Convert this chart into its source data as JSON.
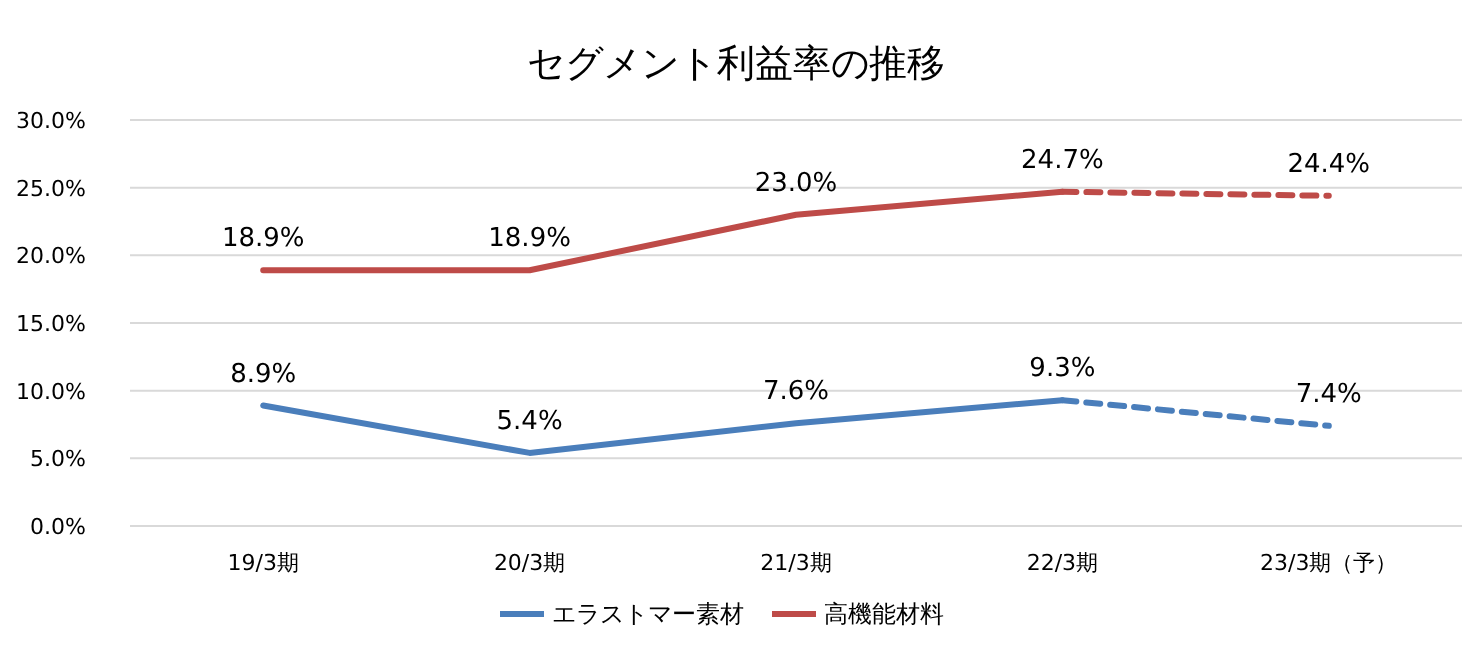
{
  "chart_data": {
    "type": "line",
    "title": "セグメント利益率の推移",
    "categories": [
      "19/3期",
      "20/3期",
      "21/3期",
      "22/3期",
      "23/3期（予）"
    ],
    "series": [
      {
        "name": "エラストマー素材",
        "color": "#4a7ebb",
        "values": [
          8.9,
          5.4,
          7.6,
          9.3,
          null
        ],
        "value_labels": [
          "8.9%",
          "5.4%",
          "7.6%",
          "9.3%",
          null
        ]
      },
      {
        "name": "高機能材料",
        "color": "#be4b48",
        "values": [
          18.9,
          18.9,
          23.0,
          24.7,
          null
        ],
        "value_labels": [
          "18.9%",
          "18.9%",
          "23.0%",
          "24.7%",
          null
        ]
      },
      {
        "color": "#4a7ebb",
        "values": [
          null,
          null,
          null,
          9.3,
          7.4
        ],
        "line_style": "dashed",
        "value_labels": [
          null,
          null,
          null,
          null,
          "7.4%"
        ]
      },
      {
        "color": "#be4b48",
        "values": [
          null,
          null,
          null,
          24.7,
          24.4
        ],
        "line_style": "dashed",
        "value_labels": [
          null,
          null,
          null,
          null,
          "24.4%"
        ]
      }
    ],
    "ylim": [
      0,
      30
    ],
    "yticks": [
      {
        "value": 0,
        "label": "0.0%"
      },
      {
        "value": 5,
        "label": "5.0%"
      },
      {
        "value": 10,
        "label": "10.0%"
      },
      {
        "value": 15,
        "label": "15.0%"
      },
      {
        "value": 20,
        "label": "20.0%"
      },
      {
        "value": 25,
        "label": "25.0%"
      },
      {
        "value": 30,
        "label": "30.0%"
      }
    ],
    "grid": "y",
    "legend": "bottom"
  }
}
